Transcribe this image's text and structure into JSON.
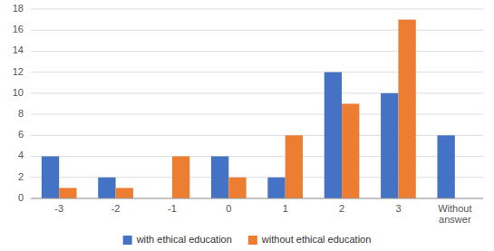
{
  "chart_data": {
    "type": "bar",
    "categories": [
      "-3",
      "-2",
      "-1",
      "0",
      "1",
      "2",
      "3",
      "Without\nanswer"
    ],
    "series": [
      {
        "name": "with ethical education",
        "color": "#4472C4",
        "values": [
          4,
          2,
          0,
          4,
          2,
          12,
          10,
          6
        ]
      },
      {
        "name": "without ethical education",
        "color": "#ED7D31",
        "values": [
          1,
          1,
          4,
          2,
          6,
          9,
          17,
          0
        ]
      }
    ],
    "ylim": [
      0,
      18
    ],
    "yticks": [
      0,
      2,
      4,
      6,
      8,
      10,
      12,
      14,
      16,
      18
    ],
    "grid": true,
    "legend": "bottom"
  }
}
